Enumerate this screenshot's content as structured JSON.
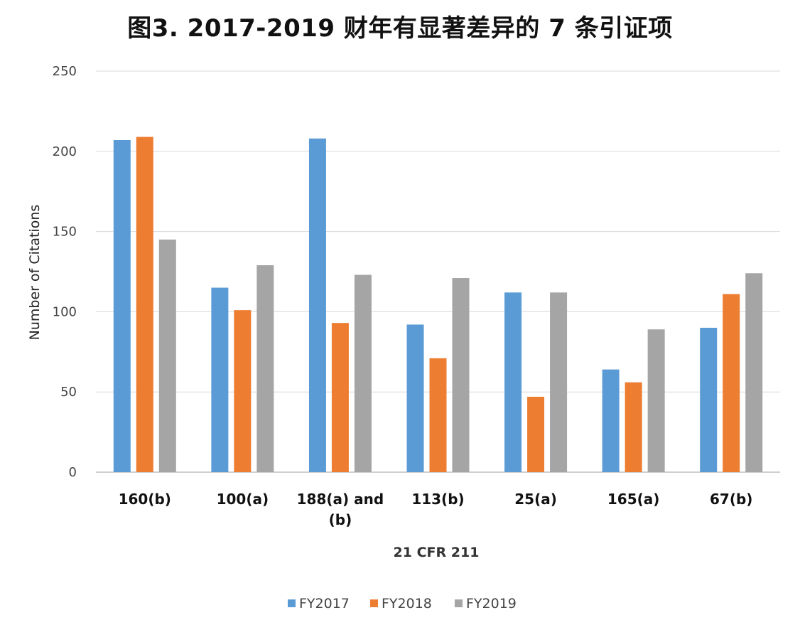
{
  "chart_data": {
    "type": "bar",
    "title": "图3. 2017-2019 财年有显著差异的 7 条引证项",
    "xlabel": "21 CFR 211",
    "ylabel": "Number of Citations",
    "ylim": [
      0,
      250
    ],
    "yticks": [
      0,
      50,
      100,
      150,
      200,
      250
    ],
    "grid": true,
    "legend_position": "bottom",
    "categories": [
      [
        "160(b)"
      ],
      [
        "100(a)"
      ],
      [
        "188(a) and",
        "(b)"
      ],
      [
        "113(b)"
      ],
      [
        "25(a)"
      ],
      [
        "165(a)"
      ],
      [
        "67(b)"
      ]
    ],
    "series": [
      {
        "name": "FY2017",
        "color": "#5b9bd5",
        "values": [
          207,
          115,
          208,
          92,
          112,
          64,
          90
        ]
      },
      {
        "name": "FY2018",
        "color": "#ed7d31",
        "values": [
          209,
          101,
          93,
          71,
          47,
          56,
          111
        ]
      },
      {
        "name": "FY2019",
        "color": "#a5a5a5",
        "values": [
          145,
          129,
          123,
          121,
          112,
          89,
          124
        ]
      }
    ]
  }
}
